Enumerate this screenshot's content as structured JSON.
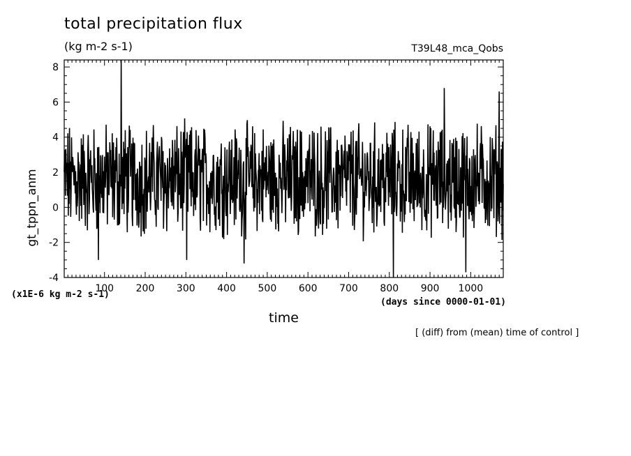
{
  "header": {
    "title": "total precipitation flux",
    "subtitle": "(kg m-2 s-1)",
    "run_label": "T39L48_mca_Qobs"
  },
  "annotations": {
    "y_scale_note": "(x1E-6 kg m-2 s-1)",
    "x_units_note": "(days since 0000-01-01)",
    "footnote": "[ (diff) from (mean) time of control ]"
  },
  "chart_data": {
    "type": "line",
    "title": "total precipitation flux",
    "subtitle": "(kg m-2 s-1)",
    "xlabel": "time",
    "ylabel": "gt_tppn_anm",
    "xlim": [
      1,
      1080
    ],
    "ylim": [
      -4,
      8.4
    ],
    "xticks": [
      100,
      200,
      300,
      400,
      500,
      600,
      700,
      800,
      900,
      1000
    ],
    "yticks": [
      -4,
      -2,
      0,
      2,
      4,
      6,
      8
    ],
    "grid": false,
    "line_color": "#000000",
    "series": [
      {
        "values_note": "daily anomaly series, x = 1..1080 days",
        "x_start": 1,
        "x_step": 1,
        "values": []
      }
    ],
    "highlights": [
      {
        "x": 141,
        "y": 8.4
      },
      {
        "x": 810,
        "y": -4.0
      },
      {
        "x": 988,
        "y": -3.7
      },
      {
        "x": 443,
        "y": -3.2
      },
      {
        "x": 935,
        "y": 6.8
      },
      {
        "x": 1070,
        "y": 6.6
      },
      {
        "x": 302,
        "y": -3.0
      },
      {
        "x": 85,
        "y": -3.0
      }
    ]
  }
}
